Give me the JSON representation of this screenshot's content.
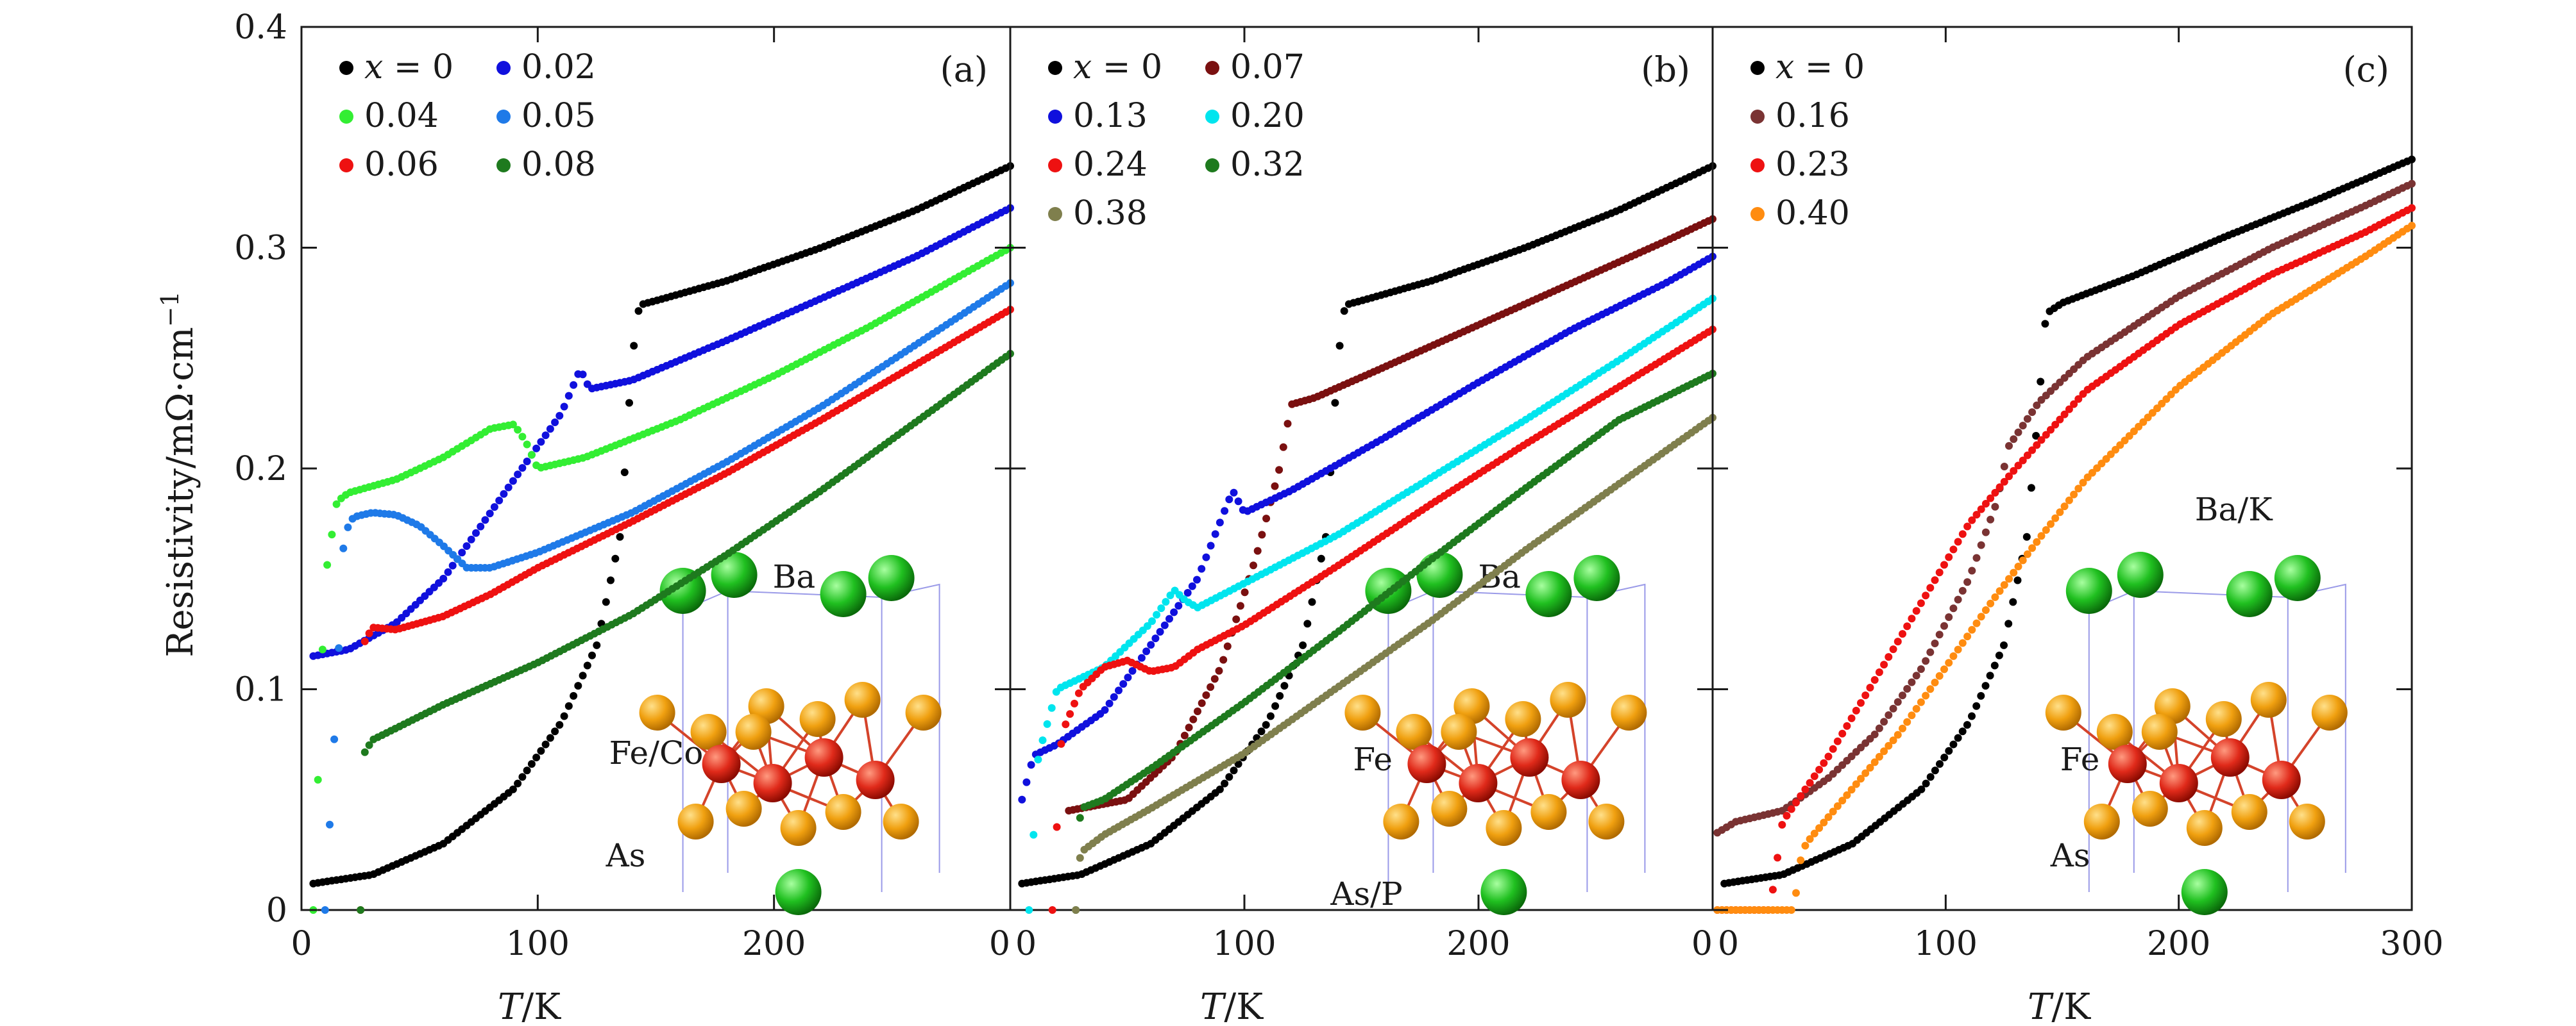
{
  "figure": {
    "ylabel": "Resistivity/mΩ·cm",
    "ylabel_exp": "−1",
    "xlabel_italic": "T",
    "xlabel_rest": "/K"
  },
  "chart_data": [
    {
      "type": "scatter",
      "panel": "(a)",
      "xlim": [
        0,
        300
      ],
      "ylim": [
        0,
        0.4
      ],
      "x_ticks": [
        "0",
        "100",
        "200",
        "0"
      ],
      "y_ticks": [
        "0",
        "0.1",
        "0.2",
        "0.3",
        "0.4"
      ],
      "legend_placement": "top-left",
      "structure_labels": [
        "Ba",
        "Fe/Co",
        "As"
      ],
      "series": [
        {
          "name": "x = 0",
          "color": "#000000",
          "x": [
            5,
            30,
            60,
            90,
            110,
            125,
            135,
            140,
            143,
            150,
            180,
            220,
            260,
            300
          ],
          "y": [
            0.012,
            0.016,
            0.03,
            0.055,
            0.085,
            0.12,
            0.17,
            0.25,
            0.274,
            0.276,
            0.285,
            0.3,
            0.317,
            0.337
          ]
        },
        {
          "name": "0.02",
          "color": "#1010dd",
          "x": [
            5,
            20,
            40,
            60,
            80,
            100,
            110,
            118,
            122,
            140,
            180,
            220,
            260,
            300
          ],
          "y": [
            0.115,
            0.118,
            0.13,
            0.15,
            0.18,
            0.21,
            0.225,
            0.245,
            0.236,
            0.24,
            0.258,
            0.277,
            0.296,
            0.318
          ]
        },
        {
          "name": "0.04",
          "color": "#33ee33",
          "x": [
            5,
            10,
            15,
            20,
            40,
            60,
            80,
            90,
            95,
            100,
            120,
            160,
            200,
            240,
            280,
            300
          ],
          "y": [
            0.0,
            0.15,
            0.185,
            0.189,
            0.195,
            0.205,
            0.218,
            0.22,
            0.212,
            0.2,
            0.205,
            0.222,
            0.242,
            0.264,
            0.288,
            0.3
          ]
        },
        {
          "name": "0.05",
          "color": "#1f7ae8",
          "x": [
            10,
            15,
            18,
            22,
            30,
            40,
            50,
            60,
            70,
            80,
            100,
            140,
            180,
            220,
            260,
            300
          ],
          "y": [
            0.0,
            0.1,
            0.17,
            0.178,
            0.18,
            0.179,
            0.174,
            0.165,
            0.155,
            0.155,
            0.162,
            0.18,
            0.203,
            0.228,
            0.256,
            0.284
          ]
        },
        {
          "name": "0.06",
          "color": "#ee1111",
          "x": [
            25,
            26,
            30,
            40,
            60,
            80,
            100,
            140,
            180,
            220,
            260,
            300
          ],
          "y": [
            0.0,
            0.12,
            0.128,
            0.127,
            0.133,
            0.143,
            0.155,
            0.176,
            0.198,
            0.222,
            0.247,
            0.272
          ]
        },
        {
          "name": "0.08",
          "color": "#1e7a1e",
          "x": [
            25,
            26,
            30,
            60,
            100,
            140,
            180,
            220,
            260,
            300
          ],
          "y": [
            0.0,
            0.07,
            0.077,
            0.093,
            0.112,
            0.134,
            0.161,
            0.19,
            0.221,
            0.252
          ]
        }
      ]
    },
    {
      "type": "scatter",
      "panel": "(b)",
      "xlim": [
        0,
        300
      ],
      "ylim": [
        0,
        0.4
      ],
      "x_ticks": [
        "0",
        "100",
        "200",
        "0"
      ],
      "legend_placement": "top-left",
      "structure_labels": [
        "Ba",
        "Fe",
        "As/P"
      ],
      "series": [
        {
          "name": "x = 0",
          "color": "#000000",
          "x": [
            5,
            30,
            60,
            90,
            110,
            125,
            135,
            140,
            143,
            150,
            180,
            220,
            260,
            300
          ],
          "y": [
            0.012,
            0.016,
            0.03,
            0.055,
            0.085,
            0.12,
            0.17,
            0.25,
            0.274,
            0.276,
            0.285,
            0.3,
            0.317,
            0.337
          ]
        },
        {
          "name": "0.07",
          "color": "#7a1010",
          "x": [
            25,
            30,
            50,
            70,
            90,
            105,
            115,
            120,
            130,
            160,
            200,
            240,
            280,
            300
          ],
          "y": [
            0.045,
            0.046,
            0.05,
            0.07,
            0.11,
            0.16,
            0.2,
            0.229,
            0.232,
            0.246,
            0.265,
            0.284,
            0.303,
            0.313
          ]
        },
        {
          "name": "0.13",
          "color": "#1010dd",
          "x": [
            5,
            10,
            20,
            40,
            60,
            80,
            95,
            100,
            120,
            160,
            200,
            240,
            280,
            300
          ],
          "y": [
            0.05,
            0.07,
            0.075,
            0.09,
            0.12,
            0.15,
            0.19,
            0.18,
            0.19,
            0.214,
            0.239,
            0.263,
            0.284,
            0.296
          ]
        },
        {
          "name": "0.20",
          "color": "#00e5ee",
          "x": [
            8,
            12,
            20,
            40,
            60,
            70,
            75,
            80,
            100,
            140,
            180,
            220,
            260,
            300
          ],
          "y": [
            0.0,
            0.07,
            0.1,
            0.11,
            0.13,
            0.145,
            0.14,
            0.137,
            0.148,
            0.17,
            0.196,
            0.222,
            0.249,
            0.277
          ]
        },
        {
          "name": "0.24",
          "color": "#ee1111",
          "x": [
            18,
            22,
            30,
            40,
            50,
            60,
            70,
            80,
            100,
            140,
            180,
            220,
            260,
            300
          ],
          "y": [
            0.0,
            0.08,
            0.1,
            0.11,
            0.113,
            0.108,
            0.11,
            0.118,
            0.129,
            0.156,
            0.184,
            0.211,
            0.237,
            0.263
          ]
        },
        {
          "name": "0.32",
          "color": "#1e7a1e",
          "x": [
            28,
            30,
            40,
            60,
            100,
            140,
            180,
            220,
            260,
            300
          ],
          "y": [
            0.0,
            0.046,
            0.05,
            0.064,
            0.094,
            0.126,
            0.159,
            0.191,
            0.222,
            0.243
          ]
        },
        {
          "name": "0.38",
          "color": "#7f7f4d",
          "x": [
            28,
            30,
            40,
            60,
            100,
            140,
            180,
            220,
            260,
            300
          ],
          "y": [
            0.0,
            0.026,
            0.034,
            0.046,
            0.071,
            0.101,
            0.131,
            0.163,
            0.193,
            0.223
          ]
        }
      ]
    },
    {
      "type": "scatter",
      "panel": "(c)",
      "xlim": [
        0,
        300
      ],
      "ylim": [
        0,
        0.4
      ],
      "x_ticks": [
        "0",
        "100",
        "200",
        "300"
      ],
      "legend_placement": "top-left",
      "structure_labels": [
        "Ba/K",
        "Fe",
        "As"
      ],
      "series": [
        {
          "name": "x = 0",
          "color": "#000000",
          "x": [
            5,
            30,
            60,
            90,
            110,
            125,
            135,
            140,
            143,
            150,
            180,
            220,
            260,
            300
          ],
          "y": [
            0.012,
            0.016,
            0.03,
            0.055,
            0.085,
            0.12,
            0.17,
            0.23,
            0.27,
            0.275,
            0.287,
            0.305,
            0.322,
            0.34
          ]
        },
        {
          "name": "0.16",
          "color": "#7a3333",
          "x": [
            2,
            10,
            30,
            50,
            70,
            90,
            110,
            122,
            127,
            140,
            160,
            200,
            240,
            280,
            300
          ],
          "y": [
            0.035,
            0.04,
            0.045,
            0.06,
            0.08,
            0.11,
            0.15,
            0.185,
            0.21,
            0.23,
            0.25,
            0.278,
            0.3,
            0.319,
            0.329
          ]
        },
        {
          "name": "0.23",
          "color": "#ee1111",
          "x": [
            2,
            24,
            26,
            30,
            50,
            70,
            90,
            110,
            130,
            160,
            200,
            240,
            280,
            300
          ],
          "y": [
            0.0,
            0.0,
            0.01,
            0.04,
            0.07,
            0.105,
            0.14,
            0.175,
            0.2,
            0.235,
            0.265,
            0.288,
            0.307,
            0.318
          ]
        },
        {
          "name": "0.40",
          "color": "#ff8c10",
          "x": [
            2,
            35,
            37,
            40,
            60,
            80,
            100,
            120,
            140,
            160,
            200,
            240,
            280,
            300
          ],
          "y": [
            0.0,
            0.0,
            0.02,
            0.03,
            0.055,
            0.08,
            0.11,
            0.14,
            0.168,
            0.195,
            0.237,
            0.27,
            0.296,
            0.31
          ]
        }
      ]
    }
  ]
}
